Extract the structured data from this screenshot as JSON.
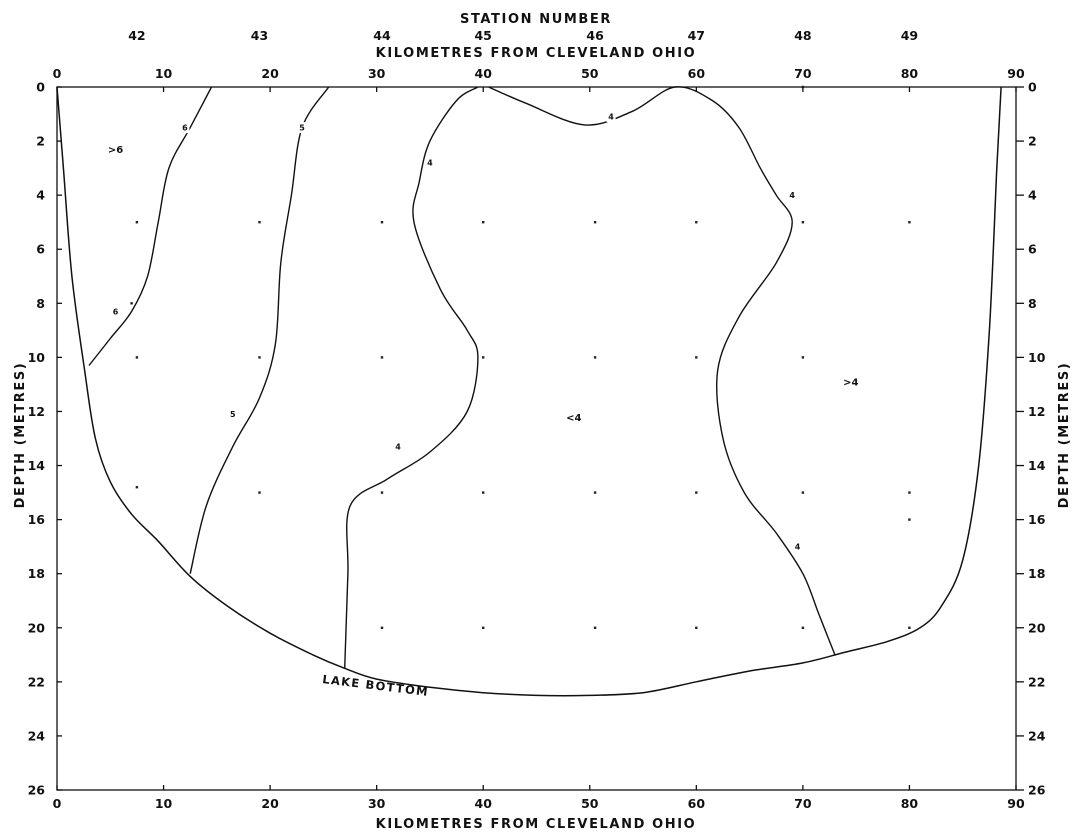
{
  "chart_data": {
    "type": "contour",
    "top_title": "STATION NUMBER",
    "top_subtitle": "KILOMETRES FROM CLEVELAND OHIO",
    "xlabel": "KILOMETRES FROM CLEVELAND OHIO",
    "ylabel_left": "DEPTH (METRES)",
    "ylabel_right": "DEPTH (METRES)",
    "xlim": [
      0,
      90
    ],
    "ylim": [
      0,
      26
    ],
    "y_inverted": true,
    "x_ticks": [
      "0",
      "10",
      "20",
      "30",
      "40",
      "50",
      "60",
      "70",
      "80",
      "90"
    ],
    "y_ticks": [
      "0",
      "2",
      "4",
      "6",
      "8",
      "10",
      "12",
      "14",
      "16",
      "18",
      "20",
      "22",
      "24",
      "26"
    ],
    "stations": [
      {
        "label": "42",
        "km": 7.5
      },
      {
        "label": "43",
        "km": 19
      },
      {
        "label": "44",
        "km": 30.5
      },
      {
        "label": "45",
        "km": 40
      },
      {
        "label": "46",
        "km": 50.5
      },
      {
        "label": "47",
        "km": 60
      },
      {
        "label": "48",
        "km": 70
      },
      {
        "label": "49",
        "km": 80
      }
    ],
    "lake_bottom": {
      "label": "LAKE BOTTOM",
      "points": [
        [
          0,
          0
        ],
        [
          0.6,
          3
        ],
        [
          1.4,
          7
        ],
        [
          2.6,
          10.5
        ],
        [
          3.6,
          13
        ],
        [
          5,
          14.6
        ],
        [
          7,
          15.8
        ],
        [
          9.5,
          16.8
        ],
        [
          12.5,
          18.1
        ],
        [
          16,
          19.2
        ],
        [
          20,
          20.2
        ],
        [
          24,
          21
        ],
        [
          27,
          21.5
        ],
        [
          30,
          21.9
        ],
        [
          35,
          22.2
        ],
        [
          40,
          22.4
        ],
        [
          45,
          22.5
        ],
        [
          50,
          22.5
        ],
        [
          55,
          22.4
        ],
        [
          60,
          22
        ],
        [
          65,
          21.6
        ],
        [
          70,
          21.3
        ],
        [
          74,
          20.9
        ],
        [
          78,
          20.5
        ],
        [
          81,
          20
        ],
        [
          83,
          19.2
        ],
        [
          85,
          17.5
        ],
        [
          86.5,
          14
        ],
        [
          87.5,
          9
        ],
        [
          88.2,
          3
        ],
        [
          88.6,
          0
        ]
      ]
    },
    "sample_points": [
      [
        7.5,
        5
      ],
      [
        19,
        5
      ],
      [
        30.5,
        5
      ],
      [
        40,
        5
      ],
      [
        50.5,
        5
      ],
      [
        60,
        5
      ],
      [
        70,
        5
      ],
      [
        80,
        5
      ],
      [
        7.5,
        10
      ],
      [
        19,
        10
      ],
      [
        30.5,
        10
      ],
      [
        40,
        10
      ],
      [
        50.5,
        10
      ],
      [
        60,
        10
      ],
      [
        70,
        10
      ],
      [
        7.5,
        14.8
      ],
      [
        19,
        15
      ],
      [
        30.5,
        15
      ],
      [
        40,
        15
      ],
      [
        50.5,
        15
      ],
      [
        60,
        15
      ],
      [
        70,
        15
      ],
      [
        80,
        15
      ],
      [
        30.5,
        20
      ],
      [
        40,
        20
      ],
      [
        50.5,
        20
      ],
      [
        60,
        20
      ],
      [
        70,
        20
      ],
      [
        80,
        20
      ],
      [
        80,
        16
      ],
      [
        70,
        0
      ],
      [
        7,
        8
      ]
    ],
    "contours": [
      {
        "value": "6",
        "points": [
          [
            14.5,
            0
          ],
          [
            12.5,
            1.5
          ],
          [
            10.5,
            3
          ],
          [
            9.5,
            5
          ],
          [
            8.5,
            7
          ],
          [
            7,
            8.3
          ],
          [
            5,
            9.3
          ],
          [
            3,
            10.3
          ]
        ]
      },
      {
        "value": "5",
        "points": [
          [
            25.5,
            0
          ],
          [
            23,
            1.5
          ],
          [
            22,
            4
          ],
          [
            21,
            6.5
          ],
          [
            20.5,
            9.5
          ],
          [
            19,
            11.5
          ],
          [
            16.5,
            13.3
          ],
          [
            14,
            15.5
          ],
          [
            12.5,
            18
          ]
        ]
      },
      {
        "value": "4",
        "points": [
          [
            39.5,
            0
          ],
          [
            37.5,
            0.5
          ],
          [
            35,
            2
          ],
          [
            34,
            3.5
          ],
          [
            33.5,
            5
          ],
          [
            36,
            7.5
          ],
          [
            38.5,
            9
          ],
          [
            39.5,
            10
          ],
          [
            38.5,
            12
          ],
          [
            35,
            13.5
          ],
          [
            31,
            14.5
          ],
          [
            27.5,
            15.5
          ],
          [
            27.3,
            18
          ],
          [
            27,
            21.5
          ]
        ]
      },
      {
        "value": "4",
        "points": [
          [
            40.5,
            0
          ],
          [
            44,
            0.6
          ],
          [
            49.5,
            1.4
          ],
          [
            54,
            0.9
          ],
          [
            58,
            0
          ],
          [
            61.5,
            0.5
          ],
          [
            64,
            1.5
          ],
          [
            66,
            3
          ],
          [
            67.5,
            4
          ],
          [
            69,
            5
          ],
          [
            67.5,
            6.5
          ],
          [
            64,
            8.5
          ],
          [
            62,
            10.5
          ],
          [
            62.5,
            13
          ],
          [
            64.5,
            15
          ],
          [
            67.5,
            16.5
          ],
          [
            70,
            18
          ],
          [
            71.5,
            19.5
          ],
          [
            73,
            21
          ]
        ]
      }
    ],
    "contour_labels": [
      {
        "text": "6",
        "at": [
          12,
          1.5
        ]
      },
      {
        "text": "5",
        "at": [
          23,
          1.5
        ]
      },
      {
        "text": "6",
        "at": [
          5.5,
          8.3
        ]
      },
      {
        "text": "4",
        "at": [
          35,
          2.8
        ]
      },
      {
        "text": "4",
        "at": [
          52,
          1.1
        ]
      },
      {
        "text": "4",
        "at": [
          69,
          4
        ]
      },
      {
        "text": "5",
        "at": [
          16.5,
          12.1
        ]
      },
      {
        "text": "4",
        "at": [
          32,
          13.3
        ]
      },
      {
        "text": "4",
        "at": [
          69.5,
          17
        ]
      }
    ],
    "region_labels": [
      {
        "text": ">6",
        "at": [
          5.5,
          2.3
        ]
      },
      {
        "text": "<4",
        "at": [
          48.5,
          12.2
        ]
      },
      {
        "text": ">4",
        "at": [
          74.5,
          10.9
        ]
      }
    ]
  }
}
